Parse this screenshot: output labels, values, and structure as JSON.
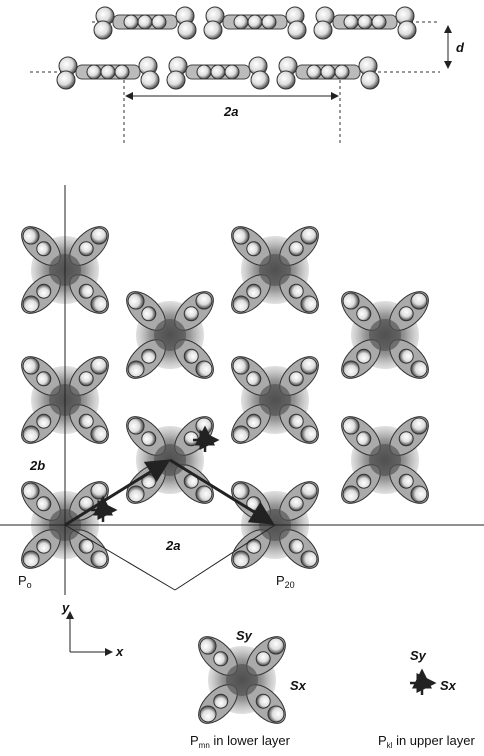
{
  "top_panel": {
    "spacing_label": "d",
    "period_label": "2a"
  },
  "lattice": {
    "b_label": "2b",
    "a_label": "2a",
    "origin_label": {
      "base": "P",
      "sub": "o"
    },
    "point_label": {
      "base": "P",
      "sub": "20"
    }
  },
  "axes": {
    "y": "y",
    "x": "x"
  },
  "lower_molecule": {
    "sy": "Sy",
    "sx": "Sx",
    "caption": {
      "base": "P",
      "sub": "mn",
      "rest": " in lower layer"
    }
  },
  "upper_molecule": {
    "sy": "Sy",
    "sx": "Sx",
    "caption": {
      "base": "P",
      "sub": "kl",
      "rest": " in upper layer"
    }
  }
}
